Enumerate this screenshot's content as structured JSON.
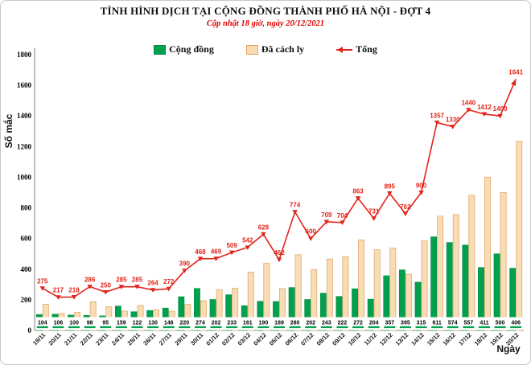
{
  "header": {
    "title": "TÌNH HÌNH DỊCH TẠI CỘNG ĐỒNG THÀNH PHỐ HÀ NỘI - ĐỢT 4",
    "subtitle": "Cập nhật 18 giờ, ngày 20/12/2021"
  },
  "legend": {
    "items": [
      {
        "label": "Cộng đồng",
        "swatch": "green-square",
        "color": "#00A04C",
        "border": "#008A41"
      },
      {
        "label": "Đã cách ly",
        "swatch": "tan-square",
        "color": "#F7DCB4",
        "border": "#DFA263"
      },
      {
        "label": "Tổng",
        "swatch": "red-line-marker",
        "color": "#E2231A"
      }
    ]
  },
  "axes": {
    "ylabel": "Số mắc",
    "xlabel": "Ngày"
  },
  "chart_data": {
    "type": "bar",
    "title": "TÌNH HÌNH DỊCH TẠI CỘNG ĐỒNG THÀNH PHỐ HÀ NỘI - ĐỢT 4",
    "subtitle": "Cập nhật 18 giờ, ngày 20/12/2021",
    "xlabel": "Ngày",
    "ylabel": "Số mắc",
    "ylim": [
      0,
      1800
    ],
    "ytick_step": 200,
    "grid": false,
    "legend_position": "top",
    "categories": [
      "19/11",
      "20/11",
      "21/11",
      "22/11",
      "23/11",
      "24/11",
      "25/11",
      "26/11",
      "27/11",
      "29/11",
      "30/11",
      "01/12",
      "02/12",
      "03/12",
      "04/12",
      "05/12",
      "06/12",
      "07/12",
      "08/12",
      "09/12",
      "10/12",
      "11/12",
      "12/12",
      "13/12",
      "14/12",
      "15/12",
      "16/12",
      "17/12",
      "18/12",
      "19/12",
      "20/12"
    ],
    "series": [
      {
        "name": "Cộng đồng",
        "kind": "bar",
        "color": "#00A04C",
        "border_color": "#008A41",
        "values": [
          104,
          106,
          100,
          98,
          95,
          159,
          122,
          130,
          146,
          220,
          274,
          202,
          233,
          161,
          190,
          189,
          280,
          202,
          243,
          222,
          272,
          204,
          357,
          395,
          315,
          611,
          574,
          557,
          411,
          500,
          406
        ],
        "value_labels_shown": true
      },
      {
        "name": "Đã cách ly",
        "kind": "bar",
        "color": "#F7DCB4",
        "border_color": "#DFA263",
        "values": [
          171,
          111,
          118,
          188,
          155,
          126,
          163,
          134,
          126,
          170,
          194,
          267,
          276,
          381,
          438,
          273,
          494,
          398,
          466,
          482,
          591,
          527,
          538,
          367,
          585,
          746,
          756,
          883,
          1001,
          900,
          1235
        ],
        "value_labels_shown": false,
        "estimated": true
      },
      {
        "name": "Tổng",
        "kind": "line",
        "color": "#E2231A",
        "marker": "triangle",
        "end_arrow": true,
        "values": [
          275,
          217,
          218,
          286,
          250,
          285,
          285,
          264,
          272,
          390,
          468,
          469,
          509,
          542,
          628,
          462,
          774,
          600,
          709,
          704,
          863,
          731,
          895,
          762,
          900,
          1357,
          1330,
          1440,
          1412,
          1400,
          1641
        ],
        "value_labels_shown": true
      }
    ]
  }
}
